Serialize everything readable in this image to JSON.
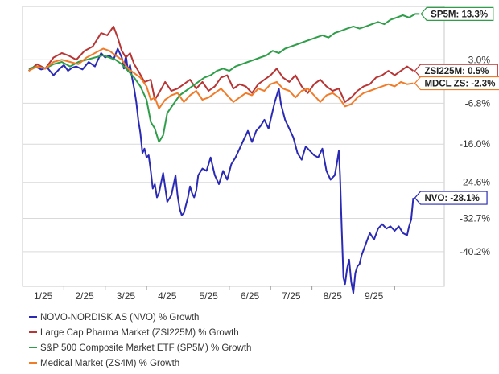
{
  "chart_data": {
    "type": "line",
    "title": "",
    "xlabel": "",
    "ylabel": "",
    "x_tick_labels": [
      "1/25",
      "2/25",
      "3/25",
      "4/25",
      "5/25",
      "6/25",
      "7/25",
      "8/25",
      "9/25"
    ],
    "y_tick_labels": [
      "3.0%",
      "-6.8%",
      "-16.0%",
      "-24.6%",
      "-32.7%",
      "-40.2%"
    ],
    "y_ticks": [
      3.0,
      -6.8,
      -16.0,
      -24.6,
      -32.7,
      -40.2
    ],
    "ylim": [
      -48,
      15
    ],
    "x_unit": "months since Dec 2024",
    "xlim": [
      0,
      10.2
    ],
    "grid": "horizontal",
    "legend_position": "bottom-left",
    "series": [
      {
        "name": "NOVO-NORDISK AS (NVO) % Growth",
        "tag": "NVO: -28.1%",
        "color": "#2a2ab5",
        "x": [
          0.15,
          0.3,
          0.45,
          0.6,
          0.75,
          0.9,
          1.0,
          1.1,
          1.2,
          1.3,
          1.45,
          1.6,
          1.75,
          1.9,
          2.0,
          2.1,
          2.2,
          2.3,
          2.4,
          2.45,
          2.5,
          2.55,
          2.6,
          2.65,
          2.7,
          2.75,
          2.8,
          2.85,
          2.9,
          2.95,
          3.0,
          3.05,
          3.1,
          3.15,
          3.2,
          3.25,
          3.3,
          3.4,
          3.5,
          3.6,
          3.7,
          3.75,
          3.8,
          3.85,
          3.9,
          4.0,
          4.05,
          4.1,
          4.15,
          4.2,
          4.25,
          4.35,
          4.45,
          4.55,
          4.65,
          4.75,
          4.85,
          4.95,
          5.05,
          5.15,
          5.25,
          5.35,
          5.45,
          5.55,
          5.65,
          5.75,
          5.85,
          5.95,
          6.05,
          6.1,
          6.15,
          6.2,
          6.25,
          6.35,
          6.45,
          6.55,
          6.65,
          6.75,
          6.85,
          6.95,
          7.05,
          7.15,
          7.25,
          7.35,
          7.45,
          7.55,
          7.6,
          7.65,
          7.68,
          7.72,
          7.76,
          7.8,
          7.85,
          7.9,
          7.95,
          8.0,
          8.05,
          8.1,
          8.15,
          8.2,
          8.3,
          8.4,
          8.5,
          8.6,
          8.7,
          8.8,
          8.9,
          9.0,
          9.1,
          9.2,
          9.3,
          9.35,
          9.4,
          9.45
        ],
        "y": [
          0.5,
          1.5,
          0.8,
          1.2,
          -0.5,
          1.0,
          1.8,
          0.5,
          1.2,
          1.5,
          0.8,
          2.5,
          1.5,
          4.5,
          3.5,
          4.0,
          3.0,
          5.5,
          3.5,
          1.0,
          4.0,
          0.5,
          1.8,
          -1.0,
          -3.5,
          -6.5,
          -10.5,
          -13.5,
          -18.0,
          -17.0,
          -19.0,
          -18.5,
          -22.0,
          -26.0,
          -25.0,
          -28.0,
          -27.0,
          -22.5,
          -29.0,
          -27.5,
          -23.0,
          -27.5,
          -30.5,
          -32.0,
          -31.5,
          -28.0,
          -25.5,
          -27.0,
          -28.0,
          -26.5,
          -23.0,
          -21.5,
          -22.0,
          -19.0,
          -23.0,
          -25.0,
          -22.0,
          -24.0,
          -20.5,
          -19.0,
          -17.0,
          -15.0,
          -13.0,
          -15.5,
          -13.0,
          -12.0,
          -10.5,
          -12.5,
          -8.5,
          -6.5,
          -5.0,
          -3.5,
          -7.0,
          -10.5,
          -12.5,
          -14.5,
          -18.0,
          -19.5,
          -16.5,
          -17.5,
          -18.5,
          -19.0,
          -17.0,
          -22.0,
          -24.0,
          -23.0,
          -20.5,
          -17.5,
          -23.0,
          -35.0,
          -46.0,
          -47.5,
          -44.0,
          -42.0,
          -47.0,
          -49.5,
          -45.0,
          -43.5,
          -43.0,
          -41.0,
          -38.5,
          -36.0,
          -37.5,
          -35.0,
          -34.0,
          -35.0,
          -34.5,
          -35.5,
          -34.5,
          -36.0,
          -36.5,
          -34.5,
          -33.0,
          -28.1
        ]
      },
      {
        "name": "Large Cap Pharma Market (ZSI225M) % Growth",
        "tag": "ZSI225M: 0.5%",
        "color": "#b83535",
        "x": [
          0.15,
          0.35,
          0.55,
          0.75,
          0.95,
          1.1,
          1.3,
          1.5,
          1.7,
          1.9,
          2.05,
          2.2,
          2.3,
          2.4,
          2.5,
          2.6,
          2.7,
          2.8,
          2.95,
          3.1,
          3.2,
          3.3,
          3.45,
          3.6,
          3.75,
          3.9,
          4.05,
          4.2,
          4.35,
          4.5,
          4.65,
          4.8,
          4.95,
          5.1,
          5.25,
          5.4,
          5.55,
          5.7,
          5.85,
          6.0,
          6.15,
          6.3,
          6.45,
          6.6,
          6.75,
          6.9,
          7.05,
          7.2,
          7.35,
          7.5,
          7.65,
          7.8,
          7.95,
          8.1,
          8.25,
          8.4,
          8.55,
          8.7,
          8.85,
          9.0,
          9.15,
          9.3,
          9.45
        ],
        "y": [
          0.5,
          2.0,
          1.0,
          3.5,
          4.5,
          4.0,
          3.0,
          5.0,
          6.0,
          9.0,
          8.5,
          10.5,
          8.0,
          5.0,
          3.5,
          4.5,
          2.0,
          0.5,
          -2.0,
          -1.5,
          -6.0,
          -4.5,
          -2.0,
          -4.0,
          -3.5,
          -2.5,
          -1.5,
          -3.5,
          -2.0,
          -4.0,
          -3.0,
          -1.0,
          -0.5,
          -3.5,
          -2.5,
          -3.0,
          -4.5,
          -2.5,
          -1.5,
          -0.5,
          1.0,
          -1.0,
          -2.0,
          -0.5,
          -3.0,
          -4.5,
          -2.5,
          -1.5,
          -3.0,
          -4.0,
          -3.5,
          -6.5,
          -5.5,
          -4.0,
          -3.0,
          -2.5,
          -1.0,
          -0.5,
          0.5,
          -0.5,
          0.5,
          1.5,
          0.5
        ]
      },
      {
        "name": "S&P 500 Composite Market ETF (SP5M) % Growth",
        "tag": "SP5M: 13.3%",
        "color": "#2e9e49",
        "x": [
          0.15,
          0.35,
          0.55,
          0.75,
          0.95,
          1.15,
          1.35,
          1.55,
          1.75,
          1.95,
          2.1,
          2.25,
          2.4,
          2.55,
          2.7,
          2.85,
          3.0,
          3.1,
          3.2,
          3.3,
          3.4,
          3.5,
          3.65,
          3.8,
          3.95,
          4.1,
          4.25,
          4.4,
          4.55,
          4.7,
          4.85,
          5.0,
          5.15,
          5.3,
          5.45,
          5.6,
          5.75,
          5.9,
          6.05,
          6.2,
          6.35,
          6.5,
          6.65,
          6.8,
          6.95,
          7.1,
          7.25,
          7.4,
          7.55,
          7.7,
          7.85,
          8.0,
          8.15,
          8.3,
          8.45,
          8.6,
          8.75,
          8.9,
          9.05,
          9.2,
          9.35,
          9.5,
          9.6
        ],
        "y": [
          1.0,
          1.5,
          1.0,
          2.0,
          2.5,
          1.5,
          2.5,
          3.0,
          3.5,
          4.0,
          3.5,
          3.0,
          2.0,
          0.5,
          -1.0,
          -3.0,
          -6.0,
          -11.0,
          -12.5,
          -15.5,
          -14.0,
          -9.0,
          -7.0,
          -5.0,
          -4.0,
          -3.0,
          -2.0,
          -1.0,
          -0.5,
          0.5,
          1.0,
          0.5,
          1.5,
          2.0,
          2.5,
          3.0,
          3.5,
          4.0,
          5.0,
          4.5,
          5.5,
          6.0,
          6.5,
          7.0,
          7.5,
          8.0,
          8.5,
          8.0,
          9.0,
          9.5,
          10.0,
          10.5,
          10.0,
          10.5,
          11.0,
          11.5,
          11.0,
          12.0,
          12.5,
          13.0,
          12.5,
          13.3,
          13.3
        ]
      },
      {
        "name": "Medical Market (ZS4M) % Growth",
        "tag": "MDCL ZS: -2.3%",
        "color": "#f07c2a",
        "x": [
          0.15,
          0.35,
          0.55,
          0.75,
          0.95,
          1.15,
          1.35,
          1.55,
          1.75,
          1.95,
          2.1,
          2.25,
          2.4,
          2.55,
          2.7,
          2.85,
          3.0,
          3.1,
          3.2,
          3.3,
          3.45,
          3.6,
          3.75,
          3.9,
          4.05,
          4.2,
          4.35,
          4.5,
          4.65,
          4.8,
          4.95,
          5.1,
          5.25,
          5.4,
          5.55,
          5.7,
          5.85,
          6.0,
          6.15,
          6.3,
          6.45,
          6.6,
          6.75,
          6.9,
          7.05,
          7.2,
          7.35,
          7.5,
          7.65,
          7.8,
          7.95,
          8.1,
          8.25,
          8.4,
          8.55,
          8.7,
          8.85,
          9.0,
          9.15,
          9.3,
          9.45
        ],
        "y": [
          0.5,
          1.5,
          1.0,
          2.5,
          3.0,
          2.5,
          2.0,
          3.5,
          4.5,
          5.5,
          5.0,
          4.0,
          3.0,
          1.0,
          0.0,
          -1.0,
          -3.0,
          -6.0,
          -5.5,
          -8.0,
          -6.0,
          -5.0,
          -4.5,
          -6.5,
          -5.0,
          -4.0,
          -6.0,
          -5.5,
          -4.5,
          -3.5,
          -5.0,
          -6.5,
          -5.5,
          -4.5,
          -5.0,
          -3.5,
          -4.0,
          -2.5,
          -2.0,
          -3.5,
          -4.0,
          -5.5,
          -4.0,
          -3.5,
          -5.0,
          -6.5,
          -5.0,
          -4.5,
          -5.5,
          -7.5,
          -7.0,
          -5.5,
          -4.5,
          -4.0,
          -3.5,
          -3.0,
          -2.5,
          -3.0,
          -2.0,
          -2.5,
          -2.3
        ]
      }
    ]
  }
}
